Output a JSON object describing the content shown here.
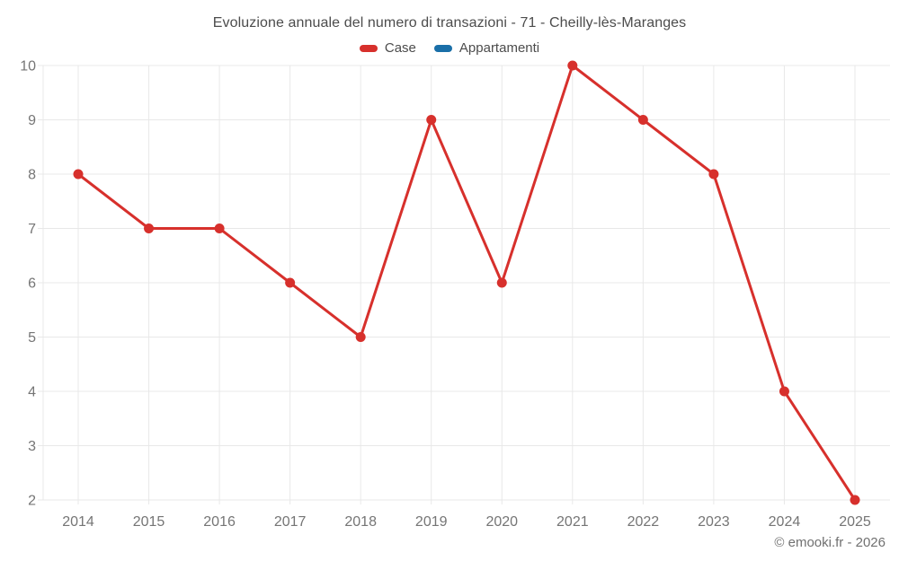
{
  "title": "Evoluzione annuale del numero di transazioni - 71 - Cheilly-lès-Maranges",
  "copyright": "© emooki.fr - 2026",
  "theme": {
    "grid_color": "#e8e8e8",
    "axis_text_color": "#757575",
    "title_text_color": "#4c4c4c",
    "background": "#ffffff"
  },
  "chart_data": {
    "type": "line",
    "title": "Evoluzione annuale del numero di transazioni - 71 - Cheilly-lès-Maranges",
    "categories": [
      "2014",
      "2015",
      "2016",
      "2017",
      "2018",
      "2019",
      "2020",
      "2021",
      "2022",
      "2023",
      "2024",
      "2025"
    ],
    "series": [
      {
        "name": "Case",
        "color": "#d7302c",
        "values": [
          8,
          7,
          7,
          6,
          5,
          9,
          6,
          10,
          9,
          8,
          4,
          2
        ]
      },
      {
        "name": "Appartamenti",
        "color": "#1a6fa8",
        "values": []
      }
    ],
    "xlabel": "",
    "ylabel": "",
    "ylim": [
      2,
      10
    ],
    "yticks": [
      2,
      3,
      4,
      5,
      6,
      7,
      8,
      9,
      10
    ],
    "grid": true,
    "legend_position": "top"
  }
}
